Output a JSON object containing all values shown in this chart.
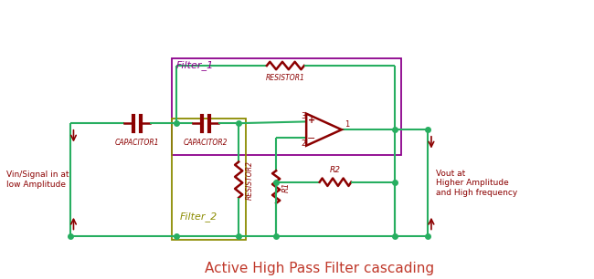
{
  "title": "Active High Pass Filter cascading",
  "title_color": "#c0392b",
  "title_fontsize": 11,
  "wire_color": "#27ae60",
  "component_color": "#8B0000",
  "filter1_box_color": "#8B008B",
  "filter2_box_color": "#8B8B00",
  "label_color": "#8B0000",
  "bg_color": "#ffffff",
  "figsize": [
    6.5,
    3.06
  ],
  "dpi": 100,
  "vin_label": "Vin/Signal in at\nlow Amplitude",
  "vout_label": "Vout at\nHigher Amplitude\nand High frequency",
  "filter1_label": "Filter_1",
  "filter2_label": "Filter_2",
  "cap1_label": "CAPACITOR1",
  "cap2_label": "CAPACITOR2",
  "res1_label": "RESISTOR1",
  "res2_label": "RESISTOR2",
  "r1_label": "R1",
  "r2_label": "R2",
  "xlim": [
    0,
    13
  ],
  "ylim": [
    0,
    6
  ]
}
